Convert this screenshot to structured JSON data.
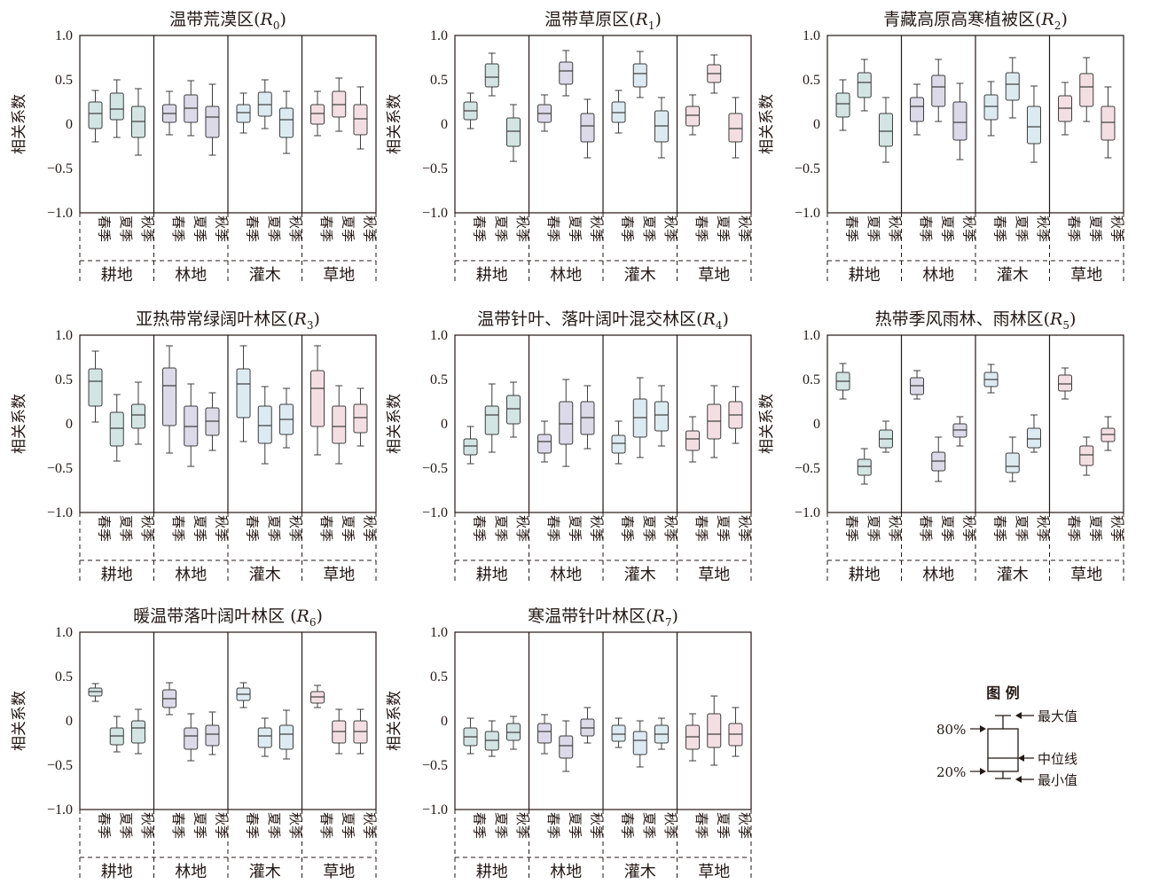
{
  "chart_data": {
    "type": "box",
    "ylabel": "相关系数",
    "y_ticks": [
      "1.0",
      "0.5",
      "0",
      "−0.5",
      "−1.0"
    ],
    "ylim": [
      -1,
      1
    ],
    "landcovers": [
      "耕地",
      "林地",
      "灌木",
      "草地"
    ],
    "seasons": [
      "春季",
      "夏季",
      "秋季"
    ],
    "landcover_colors": [
      "#d2e5e2",
      "#dcd9e8",
      "#dcebf1",
      "#f3dfe3"
    ],
    "box_stroke": "#3c3c3c",
    "panels": [
      {
        "title_prefix": "温带荒漠区(",
        "title_var": "R",
        "title_sub": "0",
        "title_suffix": ")",
        "boxes": [
          [
            [
              -0.2,
              -0.05,
              0.12,
              0.25,
              0.38
            ],
            [
              -0.15,
              0.05,
              0.17,
              0.35,
              0.5
            ],
            [
              -0.35,
              -0.15,
              0.03,
              0.2,
              0.4
            ]
          ],
          [
            [
              -0.12,
              0.02,
              0.12,
              0.22,
              0.37
            ],
            [
              -0.13,
              0.02,
              0.18,
              0.33,
              0.49
            ],
            [
              -0.35,
              -0.15,
              0.08,
              0.2,
              0.45
            ]
          ],
          [
            [
              -0.1,
              0.02,
              0.13,
              0.22,
              0.35
            ],
            [
              -0.05,
              0.09,
              0.22,
              0.36,
              0.5
            ],
            [
              -0.33,
              -0.15,
              0.05,
              0.18,
              0.37
            ]
          ],
          [
            [
              -0.13,
              0.0,
              0.12,
              0.22,
              0.37
            ],
            [
              -0.08,
              0.08,
              0.22,
              0.37,
              0.52
            ],
            [
              -0.28,
              -0.12,
              0.06,
              0.22,
              0.42
            ]
          ]
        ]
      },
      {
        "title_prefix": "温带草原区(",
        "title_var": "R",
        "title_sub": "1",
        "title_suffix": ")",
        "boxes": [
          [
            [
              -0.05,
              0.05,
              0.15,
              0.25,
              0.35
            ],
            [
              0.32,
              0.42,
              0.53,
              0.68,
              0.8
            ],
            [
              -0.42,
              -0.25,
              -0.08,
              0.07,
              0.22
            ]
          ],
          [
            [
              -0.08,
              0.02,
              0.12,
              0.22,
              0.33
            ],
            [
              0.32,
              0.45,
              0.6,
              0.7,
              0.83
            ],
            [
              -0.38,
              -0.2,
              -0.02,
              0.12,
              0.28
            ]
          ],
          [
            [
              -0.1,
              0.02,
              0.13,
              0.25,
              0.38
            ],
            [
              0.3,
              0.42,
              0.57,
              0.68,
              0.82
            ],
            [
              -0.38,
              -0.2,
              -0.02,
              0.15,
              0.3
            ]
          ],
          [
            [
              -0.12,
              -0.02,
              0.1,
              0.2,
              0.33
            ],
            [
              0.35,
              0.47,
              0.57,
              0.67,
              0.78
            ],
            [
              -0.38,
              -0.2,
              -0.05,
              0.12,
              0.3
            ]
          ]
        ]
      },
      {
        "title_prefix": "青藏高原高寒植被区(",
        "title_var": "R",
        "title_sub": "2",
        "title_suffix": ")",
        "boxes": [
          [
            [
              -0.07,
              0.08,
              0.23,
              0.35,
              0.5
            ],
            [
              0.15,
              0.3,
              0.47,
              0.58,
              0.73
            ],
            [
              -0.43,
              -0.25,
              -0.08,
              0.12,
              0.3
            ]
          ],
          [
            [
              -0.12,
              0.03,
              0.2,
              0.3,
              0.45
            ],
            [
              0.03,
              0.2,
              0.42,
              0.55,
              0.73
            ],
            [
              -0.4,
              -0.18,
              0.02,
              0.25,
              0.46
            ]
          ],
          [
            [
              -0.13,
              0.05,
              0.2,
              0.33,
              0.48
            ],
            [
              0.07,
              0.27,
              0.45,
              0.58,
              0.75
            ],
            [
              -0.43,
              -0.22,
              -0.03,
              0.2,
              0.43
            ]
          ],
          [
            [
              -0.12,
              0.03,
              0.18,
              0.32,
              0.47
            ],
            [
              0.03,
              0.2,
              0.42,
              0.57,
              0.75
            ],
            [
              -0.38,
              -0.18,
              0.02,
              0.2,
              0.42
            ]
          ]
        ]
      },
      {
        "title_prefix": "亚热带常绿阔叶林区(",
        "title_var": "R",
        "title_sub": "3",
        "title_suffix": ")",
        "boxes": [
          [
            [
              0.02,
              0.2,
              0.48,
              0.62,
              0.82
            ],
            [
              -0.42,
              -0.25,
              -0.05,
              0.13,
              0.33
            ],
            [
              -0.23,
              -0.05,
              0.1,
              0.22,
              0.47
            ]
          ],
          [
            [
              -0.33,
              -0.02,
              0.43,
              0.63,
              0.88
            ],
            [
              -0.48,
              -0.25,
              -0.03,
              0.2,
              0.45
            ],
            [
              -0.3,
              -0.13,
              0.03,
              0.18,
              0.35
            ]
          ],
          [
            [
              -0.2,
              0.07,
              0.45,
              0.62,
              0.88
            ],
            [
              -0.45,
              -0.22,
              -0.02,
              0.2,
              0.42
            ],
            [
              -0.27,
              -0.12,
              0.05,
              0.22,
              0.4
            ]
          ],
          [
            [
              -0.35,
              -0.03,
              0.4,
              0.6,
              0.88
            ],
            [
              -0.45,
              -0.22,
              -0.03,
              0.2,
              0.43
            ],
            [
              -0.25,
              -0.1,
              0.07,
              0.22,
              0.4
            ]
          ]
        ]
      },
      {
        "title_prefix": "温带针叶、落叶阔叶混交林区(",
        "title_var": "R",
        "title_sub": "4",
        "title_suffix": ")",
        "boxes": [
          [
            [
              -0.45,
              -0.35,
              -0.25,
              -0.17,
              -0.03
            ],
            [
              -0.32,
              -0.12,
              0.1,
              0.2,
              0.45
            ],
            [
              -0.15,
              0.0,
              0.17,
              0.32,
              0.47
            ]
          ],
          [
            [
              -0.43,
              -0.33,
              -0.2,
              -0.12,
              0.03
            ],
            [
              -0.48,
              -0.23,
              0.0,
              0.25,
              0.5
            ],
            [
              -0.28,
              -0.12,
              0.07,
              0.25,
              0.43
            ]
          ],
          [
            [
              -0.45,
              -0.33,
              -0.22,
              -0.13,
              0.03
            ],
            [
              -0.38,
              -0.15,
              0.07,
              0.28,
              0.52
            ],
            [
              -0.25,
              -0.08,
              0.1,
              0.25,
              0.43
            ]
          ],
          [
            [
              -0.43,
              -0.3,
              -0.17,
              -0.08,
              0.08
            ],
            [
              -0.38,
              -0.17,
              0.03,
              0.22,
              0.43
            ],
            [
              -0.22,
              -0.05,
              0.1,
              0.25,
              0.42
            ]
          ]
        ]
      },
      {
        "title_prefix": "热带季风雨林、雨林区(",
        "title_var": "R",
        "title_sub": "5",
        "title_suffix": ")",
        "boxes": [
          [
            [
              0.28,
              0.38,
              0.48,
              0.58,
              0.68
            ],
            [
              -0.68,
              -0.58,
              -0.48,
              -0.4,
              -0.28
            ],
            [
              -0.32,
              -0.27,
              -0.17,
              -0.07,
              0.03
            ]
          ],
          [
            [
              0.28,
              0.33,
              0.43,
              0.52,
              0.6
            ],
            [
              -0.65,
              -0.53,
              -0.42,
              -0.32,
              -0.15
            ],
            [
              -0.25,
              -0.15,
              -0.07,
              0.0,
              0.08
            ]
          ],
          [
            [
              0.35,
              0.42,
              0.5,
              0.58,
              0.67
            ],
            [
              -0.65,
              -0.55,
              -0.48,
              -0.33,
              -0.15
            ],
            [
              -0.32,
              -0.27,
              -0.17,
              -0.05,
              0.1
            ]
          ],
          [
            [
              0.28,
              0.37,
              0.45,
              0.55,
              0.63
            ],
            [
              -0.58,
              -0.47,
              -0.35,
              -0.25,
              -0.15
            ],
            [
              -0.3,
              -0.2,
              -0.12,
              -0.05,
              0.08
            ]
          ]
        ]
      },
      {
        "title_prefix": "暖温带落叶阔叶林区 (",
        "title_var": "R",
        "title_sub": "6",
        "title_suffix": ")",
        "boxes": [
          [
            [
              0.22,
              0.28,
              0.33,
              0.37,
              0.42
            ],
            [
              -0.35,
              -0.27,
              -0.17,
              -0.08,
              0.05
            ],
            [
              -0.37,
              -0.25,
              -0.08,
              0.0,
              0.13
            ]
          ],
          [
            [
              0.07,
              0.15,
              0.25,
              0.35,
              0.43
            ],
            [
              -0.45,
              -0.32,
              -0.17,
              -0.08,
              0.08
            ],
            [
              -0.38,
              -0.28,
              -0.15,
              -0.05,
              0.1
            ]
          ],
          [
            [
              0.15,
              0.23,
              0.3,
              0.37,
              0.43
            ],
            [
              -0.4,
              -0.3,
              -0.17,
              -0.08,
              0.03
            ],
            [
              -0.43,
              -0.32,
              -0.15,
              -0.05,
              0.12
            ]
          ],
          [
            [
              0.15,
              0.2,
              0.27,
              0.33,
              0.4
            ],
            [
              -0.37,
              -0.25,
              -0.12,
              0.0,
              0.13
            ],
            [
              -0.37,
              -0.25,
              -0.12,
              0.0,
              0.13
            ]
          ]
        ]
      },
      {
        "title_prefix": "寒温带针叶林区(",
        "title_var": "R",
        "title_sub": "7",
        "title_suffix": ")",
        "boxes": [
          [
            [
              -0.37,
              -0.28,
              -0.18,
              -0.08,
              0.03
            ],
            [
              -0.4,
              -0.33,
              -0.22,
              -0.12,
              0.0
            ],
            [
              -0.32,
              -0.22,
              -0.13,
              -0.03,
              0.05
            ]
          ],
          [
            [
              -0.37,
              -0.25,
              -0.12,
              -0.03,
              0.07
            ],
            [
              -0.57,
              -0.42,
              -0.28,
              -0.17,
              0.0
            ],
            [
              -0.25,
              -0.17,
              -0.08,
              0.02,
              0.15
            ]
          ],
          [
            [
              -0.3,
              -0.23,
              -0.15,
              -0.05,
              0.03
            ],
            [
              -0.52,
              -0.38,
              -0.22,
              -0.12,
              0.0
            ],
            [
              -0.32,
              -0.25,
              -0.15,
              -0.05,
              0.03
            ]
          ],
          [
            [
              -0.45,
              -0.32,
              -0.18,
              -0.05,
              0.08
            ],
            [
              -0.5,
              -0.3,
              -0.15,
              0.08,
              0.28
            ],
            [
              -0.4,
              -0.28,
              -0.15,
              -0.03,
              0.15
            ]
          ]
        ]
      }
    ],
    "legend": {
      "title": "图 例",
      "max": "最大值",
      "min": "最小值",
      "median": "中位线",
      "p80": "80%",
      "p20": "20%"
    }
  }
}
